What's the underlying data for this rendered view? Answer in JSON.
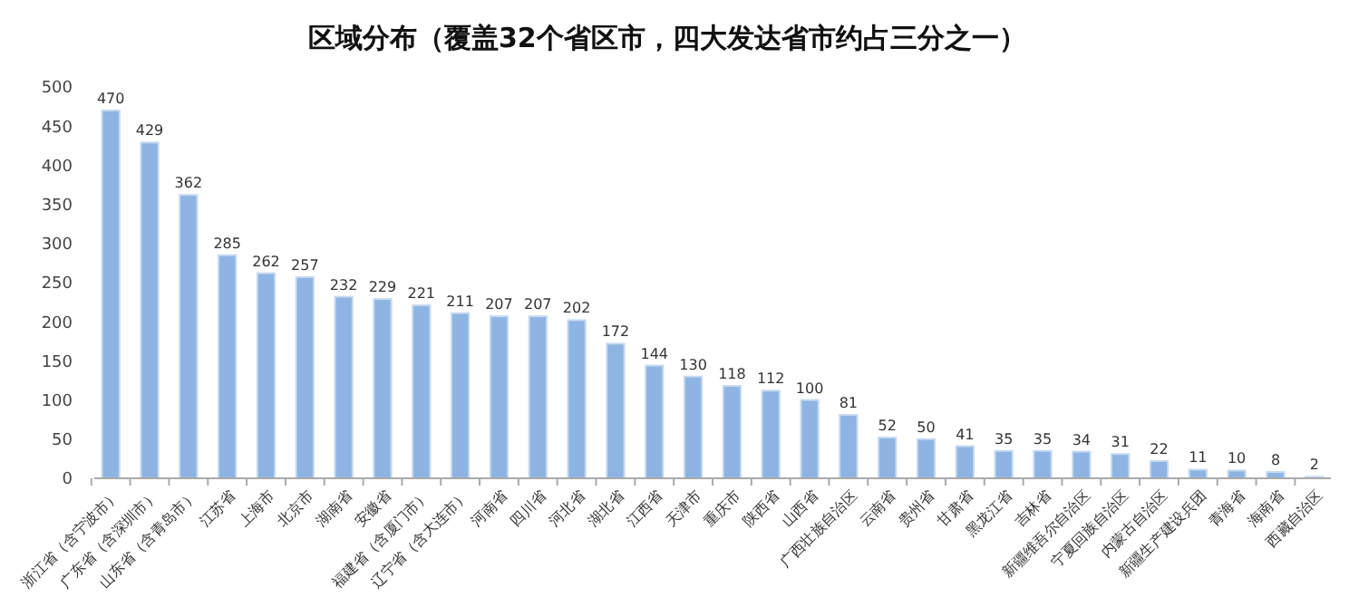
{
  "chart_data": {
    "type": "bar",
    "title": "区域分布（覆盖32个省区市，四大发达省市约占三分之一）",
    "categories": [
      "浙江省（含宁波市）",
      "广东省（含深圳市）",
      "山东省（含青岛市）",
      "江苏省",
      "上海市",
      "北京市",
      "湖南省",
      "安徽省",
      "福建省（含厦门市）",
      "辽宁省（含大连市）",
      "河南省",
      "四川省",
      "河北省",
      "湖北省",
      "江西省",
      "天津市",
      "重庆市",
      "陕西省",
      "山西省",
      "广西壮族自治区",
      "云南省",
      "贵州省",
      "甘肃省",
      "黑龙江省",
      "吉林省",
      "新疆维吾尔自治区",
      "宁夏回族自治区",
      "内蒙古自治区",
      "新疆生产建设兵团",
      "青海省",
      "海南省",
      "西藏自治区"
    ],
    "values": [
      470,
      429,
      362,
      285,
      262,
      257,
      232,
      229,
      221,
      211,
      207,
      207,
      202,
      172,
      144,
      130,
      118,
      112,
      100,
      81,
      52,
      50,
      41,
      35,
      35,
      34,
      31,
      22,
      11,
      10,
      8,
      2
    ],
    "color": "#8db4e2",
    "ylim": [
      0,
      500
    ],
    "yticks": [
      0,
      50,
      100,
      150,
      200,
      250,
      300,
      350,
      400,
      450,
      500
    ],
    "grid": false,
    "data_labels": true
  }
}
